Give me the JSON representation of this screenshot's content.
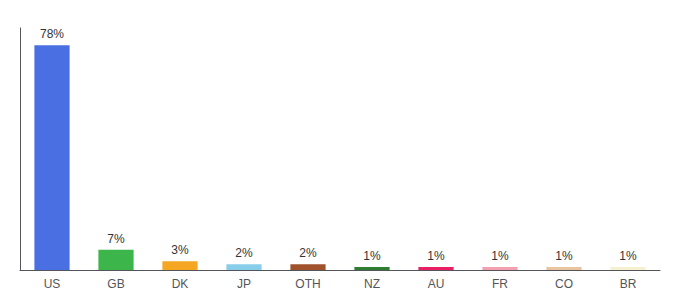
{
  "chart_data": {
    "type": "bar",
    "categories": [
      "US",
      "GB",
      "DK",
      "JP",
      "OTH",
      "NZ",
      "AU",
      "FR",
      "CO",
      "BR"
    ],
    "values": [
      78,
      7,
      3,
      2,
      2,
      1,
      1,
      1,
      1,
      1
    ],
    "value_labels": [
      "78%",
      "7%",
      "3%",
      "2%",
      "2%",
      "1%",
      "1%",
      "1%",
      "1%",
      "1%"
    ],
    "colors": [
      "#4A6FE3",
      "#3CB54A",
      "#F5A623",
      "#87CEEB",
      "#A0522D",
      "#2E7D32",
      "#E91E63",
      "#F4A0B0",
      "#E8C4A0",
      "#F5F0D0"
    ],
    "ylim": [
      0,
      84
    ],
    "yticks": [],
    "tick_labels": "x",
    "data_labels": true,
    "grid": false
  }
}
